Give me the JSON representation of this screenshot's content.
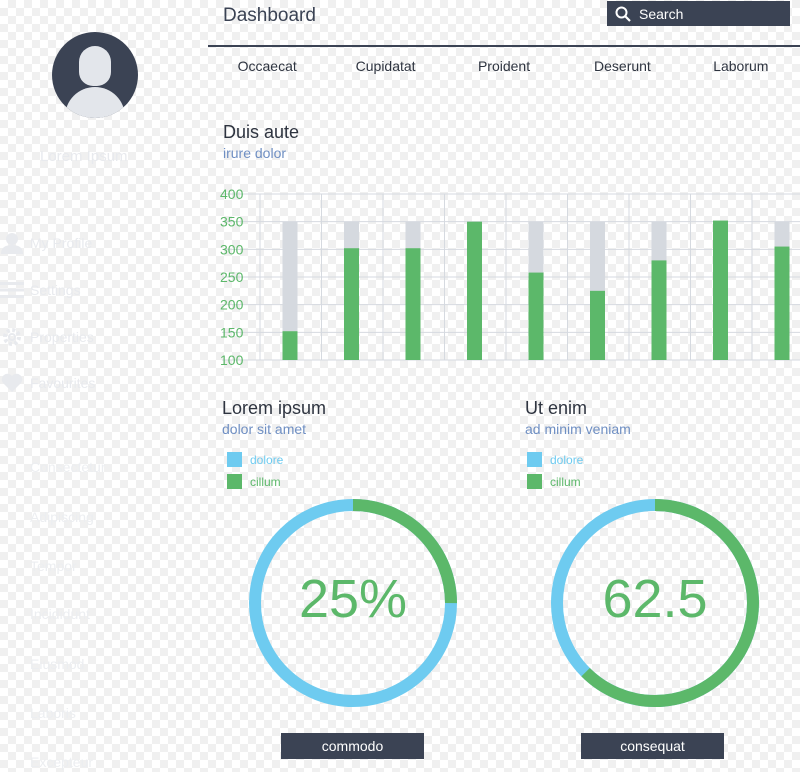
{
  "colors": {
    "dark": "#3b4354",
    "green": "#5cb86a",
    "blue": "#6ecbf0",
    "gray_bar": "#d5d9df",
    "sub_text": "#6f8fc3"
  },
  "sidebar": {
    "username": "Lorem Ipsum",
    "nav": [
      {
        "label": "My Profile",
        "icon": "user-icon"
      },
      {
        "label": "Settings",
        "icon": "menu-icon"
      },
      {
        "label": "Properties",
        "icon": "gear-icon"
      },
      {
        "label": "Favourites",
        "icon": "heart-icon"
      }
    ],
    "items": [
      "Consectetur",
      "Adipiscing",
      "Tempor",
      "Incididunt",
      "Eiusmod",
      "Laboris",
      "Excepteur"
    ]
  },
  "header": {
    "title": "Dashboard",
    "search_label": "Search",
    "tabs": [
      "Occaecat",
      "Cupidatat",
      "Proident",
      "Deserunt",
      "Laborum"
    ]
  },
  "bar_section": {
    "title": "Duis aute",
    "subtitle": "irure dolor"
  },
  "chart_data": {
    "type": "bar",
    "ylim": [
      100,
      400
    ],
    "yticks": [
      400,
      350,
      300,
      250,
      200,
      150,
      100
    ],
    "grid": true,
    "legend": "none",
    "series": [
      {
        "values": [
          350,
          350,
          350,
          350,
          350,
          350,
          350,
          350,
          350
        ]
      },
      {
        "values": [
          152,
          302,
          302,
          350,
          258,
          225,
          280,
          352,
          305
        ]
      }
    ]
  },
  "panels": [
    {
      "title": "Lorem ipsum",
      "subtitle": "dolor sit amet",
      "legend": [
        {
          "label": "dolore",
          "color": "#6ecbf0"
        },
        {
          "label": "cillum",
          "color": "#5cb86a"
        }
      ],
      "value_text": "25%",
      "green_fraction": 0.25,
      "button": "commodo"
    },
    {
      "title": "Ut enim",
      "subtitle": "ad minim veniam",
      "legend": [
        {
          "label": "dolore",
          "color": "#6ecbf0"
        },
        {
          "label": "cillum",
          "color": "#5cb86a"
        }
      ],
      "value_text": "62.5",
      "green_fraction": 0.625,
      "button": "consequat"
    }
  ]
}
